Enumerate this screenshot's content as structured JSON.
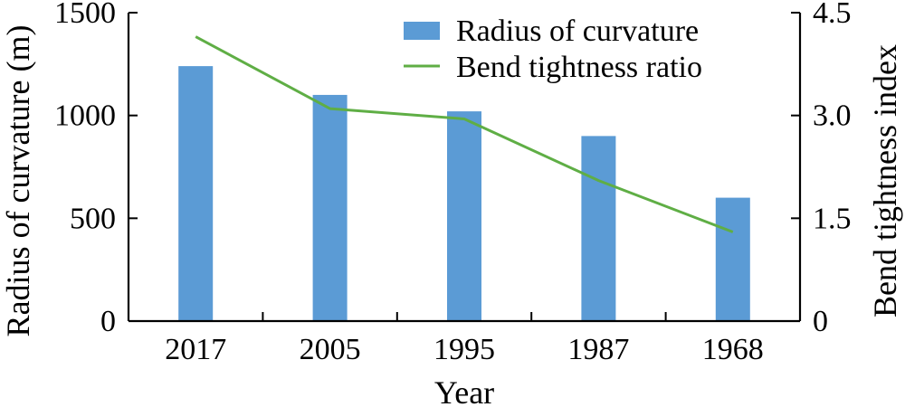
{
  "chart_data": {
    "type": "bar",
    "categories": [
      "2017",
      "2005",
      "1995",
      "1987",
      "1968"
    ],
    "series": [
      {
        "name": "Radius of curvature",
        "type": "bar",
        "axis": "left",
        "values": [
          1240,
          1100,
          1020,
          900,
          600
        ],
        "color": "#5b9bd5"
      },
      {
        "name": "Bend tightness ratio",
        "type": "line",
        "axis": "right",
        "values": [
          4.15,
          3.1,
          2.95,
          2.05,
          1.3
        ],
        "color": "#5fae45"
      }
    ],
    "xlabel": "Year",
    "ylabel_left": "Radius of curvature (m)",
    "ylabel_right": "Bend tightness index",
    "ylim_left": [
      0,
      1500
    ],
    "ylim_right": [
      0,
      4.5
    ],
    "yticks_left": [
      "0",
      "500",
      "1000",
      "1500"
    ],
    "yticks_right": [
      "0",
      "1.5",
      "3.0",
      "4.5"
    ],
    "legend_position": "top-right",
    "grid": false
  }
}
